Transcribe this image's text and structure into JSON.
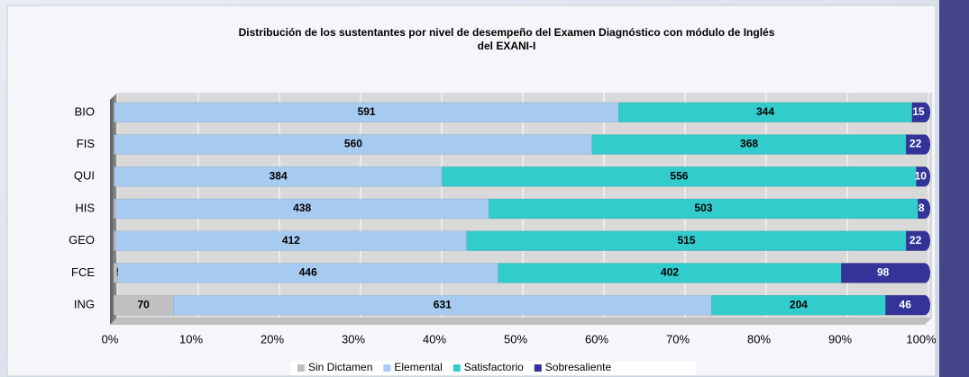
{
  "chart_data": {
    "type": "bar",
    "orientation": "horizontal",
    "stacking": "percent",
    "title": [
      "Distribución de los sustentantes  por nivel de desempeño del Examen Diagnóstico con módulo de Inglés",
      "del EXANI-I"
    ],
    "categories": [
      "BIO",
      "FIS",
      "QUI",
      "HIS",
      "GEO",
      "FCE",
      "ING"
    ],
    "series": [
      {
        "name": "Sin Dictamen",
        "color": "#c0c0c0",
        "values": [
          1,
          1,
          1,
          2,
          2,
          5,
          70
        ]
      },
      {
        "name": "Elemental",
        "color": "#a6caf0",
        "values": [
          591,
          560,
          384,
          438,
          412,
          446,
          631
        ]
      },
      {
        "name": "Satisfactorio",
        "color": "#33cccc",
        "values": [
          344,
          368,
          556,
          503,
          515,
          402,
          204
        ]
      },
      {
        "name": "Sobresaliente",
        "color": "#333399",
        "values": [
          15,
          22,
          10,
          8,
          22,
          98,
          46
        ]
      }
    ],
    "xlim": [
      0,
      100
    ],
    "xticks": [
      {
        "value": 0,
        "label": "0%"
      },
      {
        "value": 10,
        "label": "10%"
      },
      {
        "value": 20,
        "label": "20%"
      },
      {
        "value": 30,
        "label": "30%"
      },
      {
        "value": 40,
        "label": "40%"
      },
      {
        "value": 50,
        "label": "50%"
      },
      {
        "value": 60,
        "label": "60%"
      },
      {
        "value": 70,
        "label": "70%"
      },
      {
        "value": 80,
        "label": "80%"
      },
      {
        "value": 90,
        "label": "90%"
      },
      {
        "value": 100,
        "label": "100%"
      }
    ],
    "grid": true,
    "legend": "bottom"
  }
}
